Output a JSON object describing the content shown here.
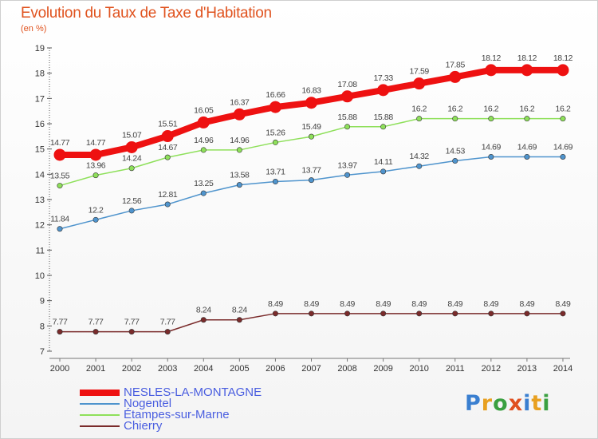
{
  "header": {
    "title": "Evolution du Taux de Taxe d'Habitation",
    "subtitle": "(en %)"
  },
  "logo": {
    "text": "Proxiti",
    "letters": [
      {
        "ch": "P",
        "color": "#3a7fd0"
      },
      {
        "ch": "r",
        "color": "#e8a020"
      },
      {
        "ch": "o",
        "color": "#3aa040"
      },
      {
        "ch": "x",
        "color": "#e05020"
      },
      {
        "ch": "i",
        "color": "#3a7fd0"
      },
      {
        "ch": "t",
        "color": "#e8a020"
      },
      {
        "ch": "i",
        "color": "#3aa040"
      }
    ]
  },
  "chart_data": {
    "type": "line",
    "title": "Evolution du Taux de Taxe d'Habitation",
    "subtitle": "(en %)",
    "x": [
      "2000",
      "2001",
      "2002",
      "2003",
      "2004",
      "2005",
      "2006",
      "2007",
      "2008",
      "2009",
      "2010",
      "2011",
      "2012",
      "2013",
      "2014"
    ],
    "y_ticks": [
      "7",
      "8",
      "9",
      "10",
      "11",
      "12",
      "13",
      "14",
      "15",
      "16",
      "17",
      "18",
      "19"
    ],
    "ylim": [
      7,
      19
    ],
    "grid": false,
    "legend_position": "bottom-left",
    "series": [
      {
        "name": "NESLES-LA-MONTAGNE",
        "color": "#ee1111",
        "emphasis": true,
        "values": [
          14.77,
          14.77,
          15.07,
          15.51,
          16.05,
          16.37,
          16.66,
          16.83,
          17.08,
          17.33,
          17.59,
          17.85,
          18.12,
          18.12,
          18.12
        ],
        "labels": [
          "14.77",
          "14.77",
          "15.07",
          "15.51",
          "16.05",
          "16.37",
          "16.66",
          "16.83",
          "17.08",
          "17.33",
          "17.59",
          "17.85",
          "18.12",
          "18.12",
          "18.12"
        ]
      },
      {
        "name": "Nogentel",
        "color": "#4f94cd",
        "emphasis": false,
        "values": [
          11.84,
          12.2,
          12.56,
          12.81,
          13.25,
          13.58,
          13.71,
          13.77,
          13.97,
          14.11,
          14.32,
          14.53,
          14.69,
          14.69,
          14.69
        ],
        "labels": [
          "11.84",
          "12.2",
          "12.56",
          "12.81",
          "13.25",
          "13.58",
          "13.71",
          "13.77",
          "13.97",
          "14.11",
          "14.32",
          "14.53",
          "14.69",
          "14.69",
          "14.69"
        ]
      },
      {
        "name": "Étampes-sur-Marne",
        "color": "#8ee05a",
        "emphasis": false,
        "values": [
          13.55,
          13.96,
          14.24,
          14.67,
          14.96,
          14.96,
          15.26,
          15.49,
          15.88,
          15.88,
          16.2,
          16.2,
          16.2,
          16.2,
          16.2
        ],
        "labels": [
          "13.55",
          "13.96",
          "14.24",
          "14.67",
          "14.96",
          "14.96",
          "15.26",
          "15.49",
          "15.88",
          "15.88",
          "16.2",
          "16.2",
          "16.2",
          "16.2",
          "16.2"
        ]
      },
      {
        "name": "Chierry",
        "color": "#7a2b2b",
        "emphasis": false,
        "values": [
          7.77,
          7.77,
          7.77,
          7.77,
          8.24,
          8.24,
          8.49,
          8.49,
          8.49,
          8.49,
          8.49,
          8.49,
          8.49,
          8.49,
          8.49
        ],
        "labels": [
          "7.77",
          "7.77",
          "7.77",
          "7.77",
          "8.24",
          "8.24",
          "8.49",
          "8.49",
          "8.49",
          "8.49",
          "8.49",
          "8.49",
          "8.49",
          "8.49",
          "8.49"
        ]
      }
    ]
  }
}
